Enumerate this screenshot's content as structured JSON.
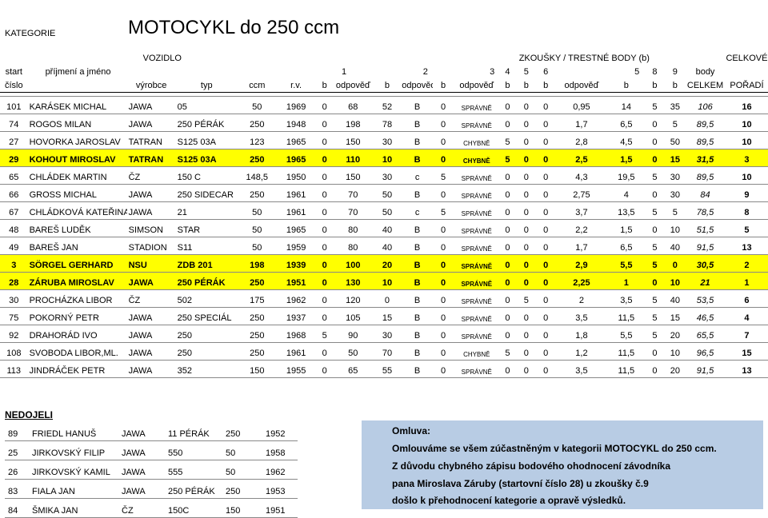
{
  "category_label": "KATEGORIE",
  "title": "MOTOCYKL do 250 ccm",
  "header": {
    "vozidlo": "VOZIDLO",
    "zkousky": "ZKOUŠKY / TRESTNÉ BODY (b)",
    "celkove": "CELKOVÉ",
    "start": "start",
    "cislo": "číslo",
    "prijmeni": "příjmení a jméno",
    "vyrobce": "výrobce",
    "typ": "typ",
    "ccm": "ccm",
    "rv": "r.v.",
    "nums": [
      "1",
      "2",
      "3",
      "4",
      "5",
      "6",
      "5",
      "8",
      "9",
      "body"
    ],
    "sub": [
      "b",
      "odpověď",
      "b",
      "odpověď",
      "b",
      "odpověď",
      "b",
      "b",
      "b",
      "odpověď",
      "b",
      "b",
      "b",
      "CELKEM",
      "POŘADÍ"
    ]
  },
  "rows": [
    {
      "hl": false,
      "cells": [
        "101",
        "KARÁSEK MICHAL",
        "JAWA",
        "05",
        "50",
        "1969",
        "0",
        "68",
        "52",
        "B",
        "0",
        "SPRÁVNĚ",
        "0",
        "0",
        "0",
        "0,95",
        "14",
        "5",
        "35",
        "106",
        "16"
      ]
    },
    {
      "hl": false,
      "cells": [
        "74",
        "ROGOS MILAN",
        "JAWA",
        "250 PÉRÁK",
        "250",
        "1948",
        "0",
        "198",
        "78",
        "B",
        "0",
        "SPRÁVNĚ",
        "0",
        "0",
        "0",
        "1,7",
        "6,5",
        "0",
        "5",
        "89,5",
        "10"
      ]
    },
    {
      "hl": false,
      "cells": [
        "27",
        "HOVORKA JAROSLAV",
        "TATRAN",
        "S125 03A",
        "123",
        "1965",
        "0",
        "150",
        "30",
        "B",
        "0",
        "CHYBNĚ",
        "5",
        "0",
        "0",
        "2,8",
        "4,5",
        "0",
        "50",
        "89,5",
        "10"
      ]
    },
    {
      "hl": true,
      "cells": [
        "29",
        "KOHOUT MIROSLAV",
        "TATRAN",
        "S125 03A",
        "250",
        "1965",
        "0",
        "110",
        "10",
        "B",
        "0",
        "CHYBNĚ",
        "5",
        "0",
        "0",
        "2,5",
        "1,5",
        "0",
        "15",
        "31,5",
        "3"
      ]
    },
    {
      "hl": false,
      "cells": [
        "65",
        "CHLÁDEK MARTIN",
        "ČZ",
        "150 C",
        "148,5",
        "1950",
        "0",
        "150",
        "30",
        "c",
        "5",
        "SPRÁVNĚ",
        "0",
        "0",
        "0",
        "4,3",
        "19,5",
        "5",
        "30",
        "89,5",
        "10"
      ]
    },
    {
      "hl": false,
      "cells": [
        "66",
        "GROSS MICHAL",
        "JAWA",
        "250 SIDECAR",
        "250",
        "1961",
        "0",
        "70",
        "50",
        "B",
        "0",
        "SPRÁVNĚ",
        "0",
        "0",
        "0",
        "2,75",
        "4",
        "0",
        "30",
        "84",
        "9"
      ]
    },
    {
      "hl": false,
      "cells": [
        "67",
        "CHLÁDKOVÁ KATEŘINA",
        "JAWA",
        "21",
        "50",
        "1961",
        "0",
        "70",
        "50",
        "c",
        "5",
        "SPRÁVNĚ",
        "0",
        "0",
        "0",
        "3,7",
        "13,5",
        "5",
        "5",
        "78,5",
        "8"
      ]
    },
    {
      "hl": false,
      "cells": [
        "48",
        "BAREŠ LUDĚK",
        "SIMSON",
        "STAR",
        "50",
        "1965",
        "0",
        "80",
        "40",
        "B",
        "0",
        "SPRÁVNĚ",
        "0",
        "0",
        "0",
        "2,2",
        "1,5",
        "0",
        "10",
        "51,5",
        "5"
      ]
    },
    {
      "hl": false,
      "cells": [
        "49",
        "BAREŠ JAN",
        "STADION",
        "S11",
        "50",
        "1959",
        "0",
        "80",
        "40",
        "B",
        "0",
        "SPRÁVNĚ",
        "0",
        "0",
        "0",
        "1,7",
        "6,5",
        "5",
        "40",
        "91,5",
        "13"
      ]
    },
    {
      "hl": true,
      "cells": [
        "3",
        "SÖRGEL GERHARD",
        "NSU",
        "ZDB 201",
        "198",
        "1939",
        "0",
        "100",
        "20",
        "B",
        "0",
        "SPRÁVNĚ",
        "0",
        "0",
        "0",
        "2,9",
        "5,5",
        "5",
        "0",
        "30,5",
        "2"
      ]
    },
    {
      "hl": true,
      "cells": [
        "28",
        "ZÁRUBA MIROSLAV",
        "JAWA",
        "250 PÉRÁK",
        "250",
        "1951",
        "0",
        "130",
        "10",
        "B",
        "0",
        "SPRÁVNĚ",
        "0",
        "0",
        "0",
        "2,25",
        "1",
        "0",
        "10",
        "21",
        "1"
      ]
    },
    {
      "hl": false,
      "cells": [
        "30",
        "PROCHÁZKA LIBOR",
        "ČZ",
        "502",
        "175",
        "1962",
        "0",
        "120",
        "0",
        "B",
        "0",
        "SPRÁVNĚ",
        "0",
        "5",
        "0",
        "2",
        "3,5",
        "5",
        "40",
        "53,5",
        "6"
      ]
    },
    {
      "hl": false,
      "cells": [
        "75",
        "POKORNÝ PETR",
        "JAWA",
        "250 SPECIÁL",
        "250",
        "1937",
        "0",
        "105",
        "15",
        "B",
        "0",
        "SPRÁVNĚ",
        "0",
        "0",
        "0",
        "3,5",
        "11,5",
        "5",
        "15",
        "46,5",
        "4"
      ]
    },
    {
      "hl": false,
      "cells": [
        "92",
        "DRAHORÁD IVO",
        "JAWA",
        "250",
        "250",
        "1968",
        "5",
        "90",
        "30",
        "B",
        "0",
        "SPRÁVNĚ",
        "0",
        "0",
        "0",
        "1,8",
        "5,5",
        "5",
        "20",
        "65,5",
        "7"
      ]
    },
    {
      "hl": false,
      "cells": [
        "108",
        "SVOBODA LIBOR,ML.",
        "JAWA",
        "250",
        "250",
        "1961",
        "0",
        "50",
        "70",
        "B",
        "0",
        "CHYBNĚ",
        "5",
        "0",
        "0",
        "1,2",
        "11,5",
        "0",
        "10",
        "96,5",
        "15"
      ]
    },
    {
      "hl": false,
      "cells": [
        "113",
        "JINDRÁČEK PETR",
        "JAWA",
        "352",
        "150",
        "1955",
        "0",
        "65",
        "55",
        "B",
        "0",
        "SPRÁVNĚ",
        "0",
        "0",
        "0",
        "3,5",
        "11,5",
        "0",
        "20",
        "91,5",
        "13"
      ]
    }
  ],
  "nedojeli_title": "NEDOJELI",
  "nedojeli": [
    [
      "89",
      "FRIEDL HANUŠ",
      "JAWA",
      "11 PÉRÁK",
      "250",
      "1952"
    ],
    [
      "25",
      "JIRKOVSKÝ FILIP",
      "JAWA",
      "550",
      "50",
      "1958"
    ],
    [
      "26",
      "JIRKOVSKÝ KAMIL",
      "JAWA",
      "555",
      "50",
      "1962"
    ],
    [
      "83",
      "FIALA JAN",
      "JAWA",
      "250 PÉRÁK",
      "250",
      "1953"
    ],
    [
      "84",
      "ŠMIKA JAN",
      "ČZ",
      "150C",
      "150",
      "1951"
    ]
  ],
  "note": {
    "title": "Omluva:",
    "lines": [
      "Omlouváme se všem zúčastněným v kategorii MOTOCYKL do 250 ccm.",
      "Z důvodu chybného zápisu bodového ohodnocení závodníka",
      "pana Miroslava Záruby (startovní číslo 28) u zkoušky č.9",
      "došlo k přehodnocení kategorie a opravě výsledků."
    ]
  },
  "colors": {
    "highlight": "#ffff00",
    "note_bg": "#b8cce4"
  }
}
